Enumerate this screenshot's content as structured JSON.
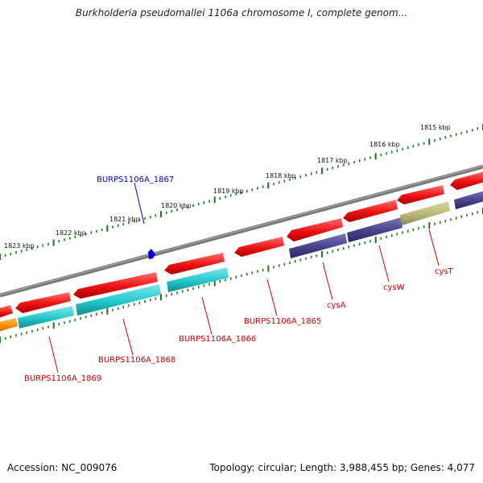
{
  "title": "Burkholderia pseudomallei 1106a chromosome I, complete genom...",
  "footer": {
    "accession": "Accession: NC_009076",
    "topology": "Topology: circular; Length: 3,988,455 bp; Genes: 4,077"
  },
  "colors": {
    "gene_red": "#ee1111",
    "gene_cyan": "#22c8cc",
    "gene_purple": "#45428a",
    "gene_olive": "#b8b676",
    "gene_orange": "#ff8c00",
    "backbone": "#808080",
    "tick_green": "#1a7a1a",
    "label_red": "#cc0000",
    "label_blue": "#0000cc",
    "marker_blue": "#0000dd"
  },
  "scale_labels": [
    "1823 kbp",
    "1822 kbp",
    "1821 kbp",
    "1820 kbp",
    "1819 kbp",
    "1818 kbp",
    "1817 kbp",
    "1816 kbp",
    "1815 kbp"
  ],
  "gene_labels": [
    "BURPS1106A_1869",
    "BURPS1106A_1868",
    "BURPS1106A_1866",
    "BURPS1106A_1865",
    "cysA",
    "cysW",
    "cysT"
  ],
  "highlight_label": "BURPS1106A_1867"
}
